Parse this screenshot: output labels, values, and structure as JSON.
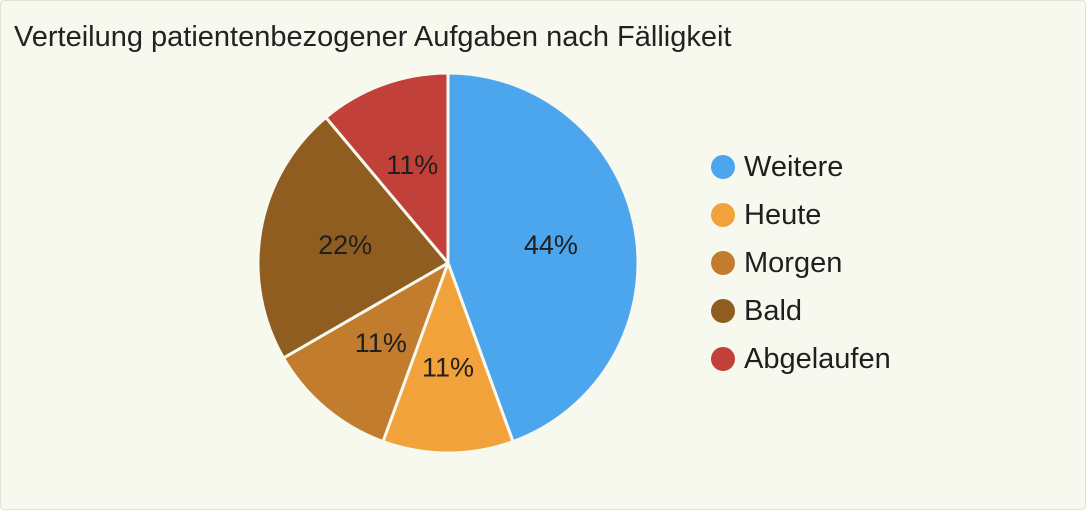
{
  "chart_data": {
    "type": "pie",
    "title": "Verteilung patientenbezogener Aufgaben nach Fälligkeit",
    "unit": "%",
    "labels": [
      "Weitere",
      "Heute",
      "Morgen",
      "Bald",
      "Abgelaufen"
    ],
    "values": [
      44,
      11,
      11,
      22,
      11
    ],
    "colors": [
      "#4ba6ee",
      "#f1a23a",
      "#c17c2d",
      "#8f5d1f",
      "#c2403a"
    ],
    "legend_position": "right",
    "start_angle": "12 o'clock, clockwise"
  }
}
